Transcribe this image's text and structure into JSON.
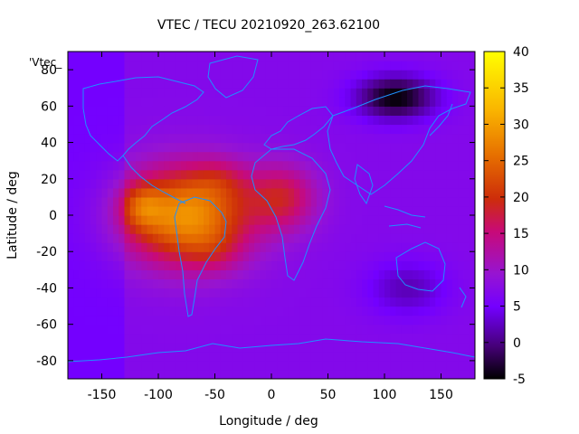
{
  "chart_data": {
    "type": "heatmap",
    "title": "VTEC / TECU 20210920_263.62100",
    "xlabel": "Longitude / deg",
    "ylabel": "Latitude / deg",
    "legend_label": "'Vtec_",
    "xlim": [
      -180,
      180
    ],
    "ylim": [
      -90,
      90
    ],
    "xticks": [
      -150,
      -100,
      -50,
      0,
      50,
      100,
      150
    ],
    "yticks": [
      -80,
      -60,
      -40,
      -20,
      0,
      20,
      40,
      60,
      80
    ],
    "colorbar": {
      "range": [
        -5,
        40
      ],
      "ticks": [
        -5,
        0,
        5,
        10,
        15,
        20,
        25,
        30,
        35,
        40
      ]
    },
    "overlay": "coastlines",
    "field_features": [
      {
        "label": "background",
        "lon": 0,
        "lat": 0,
        "value": 7
      },
      {
        "label": "crest-west-atlantic",
        "lon": -50,
        "lat": 5,
        "value": 30
      },
      {
        "label": "crest-east-pacific",
        "lon": -115,
        "lat": 5,
        "value": 35
      },
      {
        "label": "north-band",
        "lon": -40,
        "lat": 20,
        "value": 24
      },
      {
        "label": "south-band",
        "lon": -50,
        "lat": -20,
        "value": 24
      },
      {
        "label": "africa-lobe",
        "lon": 10,
        "lat": 15,
        "value": 20
      },
      {
        "label": "siberia-low",
        "lon": 110,
        "lat": 65,
        "value": -5
      },
      {
        "label": "south-indian-low",
        "lon": 120,
        "lat": -40,
        "value": 2
      },
      {
        "label": "mid-south-pacific-dip",
        "lon": -165,
        "lat": -5,
        "value": 5
      }
    ]
  }
}
